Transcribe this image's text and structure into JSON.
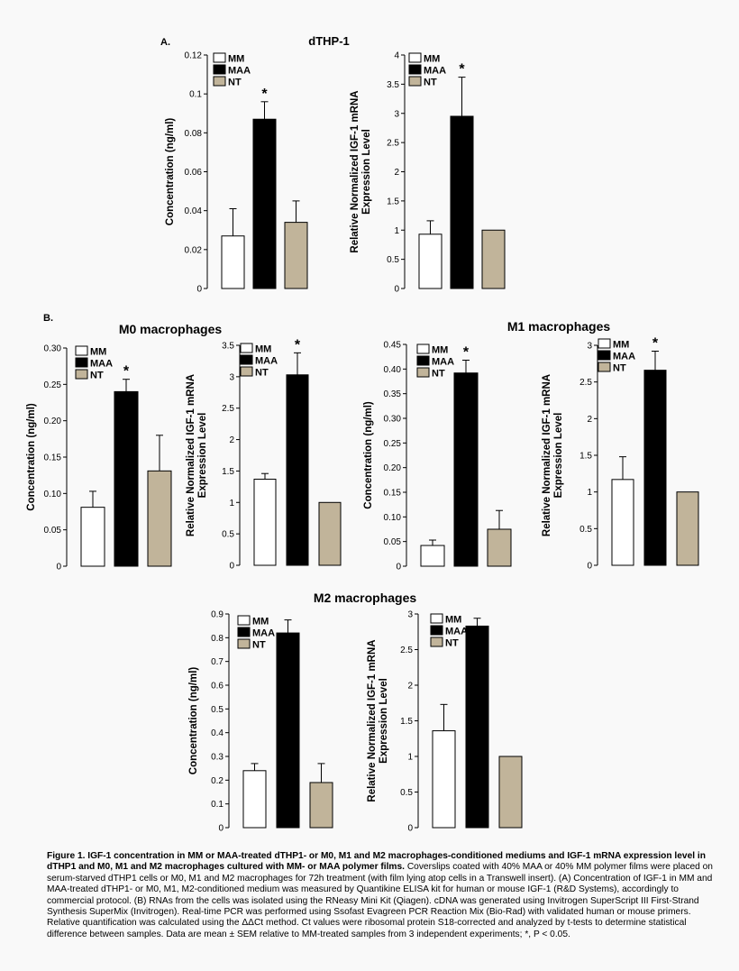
{
  "figure": {
    "panel_labels": [
      "A.",
      "B."
    ],
    "section_titles": [
      "dTHP-1",
      "M0 macrophages",
      "M1 macrophages",
      "M2 macrophages"
    ],
    "legend": [
      "MM",
      "MAA",
      "NT"
    ],
    "colors": {
      "MM": "#ffffff",
      "MAA": "#000000",
      "NT": "#c1b49a",
      "stroke": "#000000"
    }
  },
  "chart_data": [
    {
      "type": "bar",
      "title": "",
      "xlabel": "",
      "ylabel": "Concentration (ng/ml)",
      "categories": [
        "MM",
        "MAA",
        "NT"
      ],
      "values": [
        0.027,
        0.087,
        0.034
      ],
      "errors": [
        0.014,
        0.009,
        0.011
      ],
      "significance": [
        "",
        "*",
        ""
      ],
      "ylim": [
        0,
        0.12
      ],
      "ytick_labels": [
        "0",
        "0.02",
        "0.04",
        "0.06",
        "0.08",
        "0.1",
        "0.12"
      ],
      "legend": "top-left",
      "grid": false
    },
    {
      "type": "bar",
      "title": "",
      "xlabel": "",
      "ylabel": "Relative Normalized IGF-1 mRNA Expression Level",
      "categories": [
        "MM",
        "MAA",
        "NT"
      ],
      "values": [
        0.93,
        2.95,
        1.0
      ],
      "errors": [
        0.23,
        0.67,
        0
      ],
      "significance": [
        "",
        "*",
        ""
      ],
      "ylim": [
        0,
        4
      ],
      "ytick_labels": [
        "0",
        "0.5",
        "1",
        "1.5",
        "2",
        "2.5",
        "3",
        "3.5",
        "4"
      ],
      "legend": "top-left",
      "grid": false
    },
    {
      "type": "bar",
      "title": "",
      "xlabel": "",
      "ylabel": "Concentration (ng/ml)",
      "categories": [
        "MM",
        "MAA",
        "NT"
      ],
      "values": [
        0.081,
        0.24,
        0.131
      ],
      "errors": [
        0.022,
        0.017,
        0.049
      ],
      "significance": [
        "",
        "*",
        ""
      ],
      "ylim": [
        0,
        0.3
      ],
      "ytick_labels": [
        "0",
        "0.05",
        "0.10",
        "0.15",
        "0.20",
        "0.25",
        "0.30"
      ],
      "legend": "top-left",
      "grid": false
    },
    {
      "type": "bar",
      "title": "",
      "xlabel": "",
      "ylabel": "Relative Normalized IGF-1 mRNA Expression Level",
      "categories": [
        "MM",
        "MAA",
        "NT"
      ],
      "values": [
        1.37,
        3.03,
        1.0
      ],
      "errors": [
        0.09,
        0.35,
        0
      ],
      "significance": [
        "",
        "*",
        ""
      ],
      "ylim": [
        0,
        3.5
      ],
      "ytick_labels": [
        "0",
        "0.5",
        "1",
        "1.5",
        "2",
        "2.5",
        "3",
        "3.5"
      ],
      "legend": "top-left",
      "grid": false
    },
    {
      "type": "bar",
      "title": "",
      "xlabel": "",
      "ylabel": "Concentration (ng/ml)",
      "categories": [
        "MM",
        "MAA",
        "NT"
      ],
      "values": [
        0.042,
        0.392,
        0.075
      ],
      "errors": [
        0.011,
        0.026,
        0.038
      ],
      "significance": [
        "",
        "*",
        ""
      ],
      "ylim": [
        0,
        0.45
      ],
      "ytick_labels": [
        "0",
        "0.05",
        "0.10",
        "0.15",
        "0.20",
        "0.25",
        "0.30",
        "0.35",
        "0.40",
        "0.45"
      ],
      "legend": "top-left",
      "grid": false
    },
    {
      "type": "bar",
      "title": "",
      "xlabel": "",
      "ylabel": "Relative Normalized IGF-1 mRNA Expression Level",
      "categories": [
        "MM",
        "MAA",
        "NT"
      ],
      "values": [
        1.17,
        2.66,
        1.0
      ],
      "errors": [
        0.31,
        0.26,
        0
      ],
      "significance": [
        "",
        "*",
        ""
      ],
      "ylim": [
        0,
        3
      ],
      "ytick_labels": [
        "0",
        "0.5",
        "1",
        "1.5",
        "2",
        "2.5",
        "3"
      ],
      "legend": "top-left",
      "grid": false
    },
    {
      "type": "bar",
      "title": "",
      "xlabel": "",
      "ylabel": "Concentration (ng/ml)",
      "categories": [
        "MM",
        "MAA",
        "NT"
      ],
      "values": [
        0.24,
        0.82,
        0.19
      ],
      "errors": [
        0.03,
        0.055,
        0.08
      ],
      "significance": [
        "",
        "",
        ""
      ],
      "ylim": [
        0,
        0.9
      ],
      "ytick_labels": [
        "0",
        "0.1",
        "0.2",
        "0.3",
        "0.4",
        "0.5",
        "0.6",
        "0.7",
        "0.8",
        "0.9"
      ],
      "legend": "top-left",
      "grid": false
    },
    {
      "type": "bar",
      "title": "",
      "xlabel": "",
      "ylabel": "Relative Normalized IGF-1 mRNA Expression Level",
      "categories": [
        "MM",
        "MAA",
        "NT"
      ],
      "values": [
        1.36,
        2.83,
        1.0
      ],
      "errors": [
        0.37,
        0.11,
        0
      ],
      "significance": [
        "",
        "",
        ""
      ],
      "ylim": [
        0,
        3
      ],
      "ytick_labels": [
        "0",
        "0.5",
        "1",
        "1.5",
        "2",
        "2.5",
        "3"
      ],
      "legend": "top-left",
      "grid": false
    }
  ],
  "caption": {
    "bold": "Figure 1. IGF-1 concentration in MM or MAA-treated dTHP1- or M0, M1 and M2 macrophages-conditioned mediums and IGF-1 mRNA expression level in dTHP1 and M0, M1 and M2 macrophages cultured with MM- or MAA polymer films.",
    "text": " Coverslips coated with 40% MAA or 40% MM polymer films were placed on serum-starved dTHP1 cells  or M0, M1 and M2 macrophages for 72h treatment (with film lying atop cells in a Transwell insert). (A) Concentration of IGF-1 in MM and MAA-treated dTHP1- or M0, M1, M2-conditioned medium was measured by Quantikine ELISA kit for human or mouse IGF-1 (R&D Systems), accordingly to commercial protocol. (B)  RNAs from the cells was isolated using the RNeasy Mini Kit (Qiagen). cDNA was generated using Invitrogen SuperScript III First-Strand Synthesis SuperMix (Invitrogen). Real-time PCR was performed using Ssofast Evagreen PCR Reaction Mix (Bio-Rad) with validated human or mouse  primers. Relative quantification was calculated using the ΔΔCt method. Ct values were ribosomal protein S18-corrected and analyzed by t-tests to determine statistical difference between samples. Data are mean ± SEM relative to MM-treated samples from 3 independent experiments; *, P < 0.05."
  }
}
